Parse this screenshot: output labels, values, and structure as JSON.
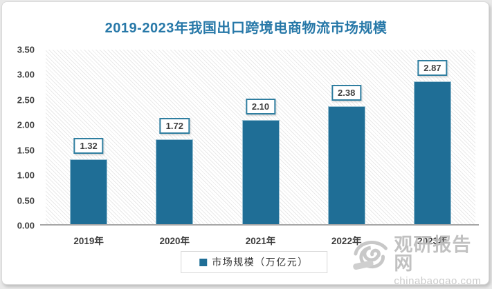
{
  "colors": {
    "bar_fill": "#1f6e96",
    "bar_edge": "#9cc2d3",
    "title_text": "#2778a8",
    "label_box_border": "#2f7ea0",
    "axis_text": "#3d3d3d",
    "axis_line": "#a6a6a6",
    "watermark_gray": "#c2c2c2"
  },
  "chart_data": {
    "type": "bar",
    "title": "2019-2023年我国出口跨境电商物流市场规模",
    "categories": [
      "2019年",
      "2020年",
      "2021年",
      "2022年",
      "2023年"
    ],
    "values": [
      1.32,
      1.72,
      2.1,
      2.38,
      2.87
    ],
    "value_labels": [
      "1.32",
      "1.72",
      "2.10",
      "2.38",
      "2.87"
    ],
    "legend": "市场规模（万亿元）",
    "legend_position": "bottom",
    "ylim": [
      0,
      3.5
    ],
    "ytick_step": 0.5,
    "ytick_labels": [
      "0.00",
      "0.50",
      "1.00",
      "1.50",
      "2.00",
      "2.50",
      "3.00",
      "3.50"
    ],
    "grid": false,
    "plot_background": "diagonal-hatch"
  },
  "watermark": {
    "name": "观研报告网",
    "url": "chinabaogao.com"
  }
}
